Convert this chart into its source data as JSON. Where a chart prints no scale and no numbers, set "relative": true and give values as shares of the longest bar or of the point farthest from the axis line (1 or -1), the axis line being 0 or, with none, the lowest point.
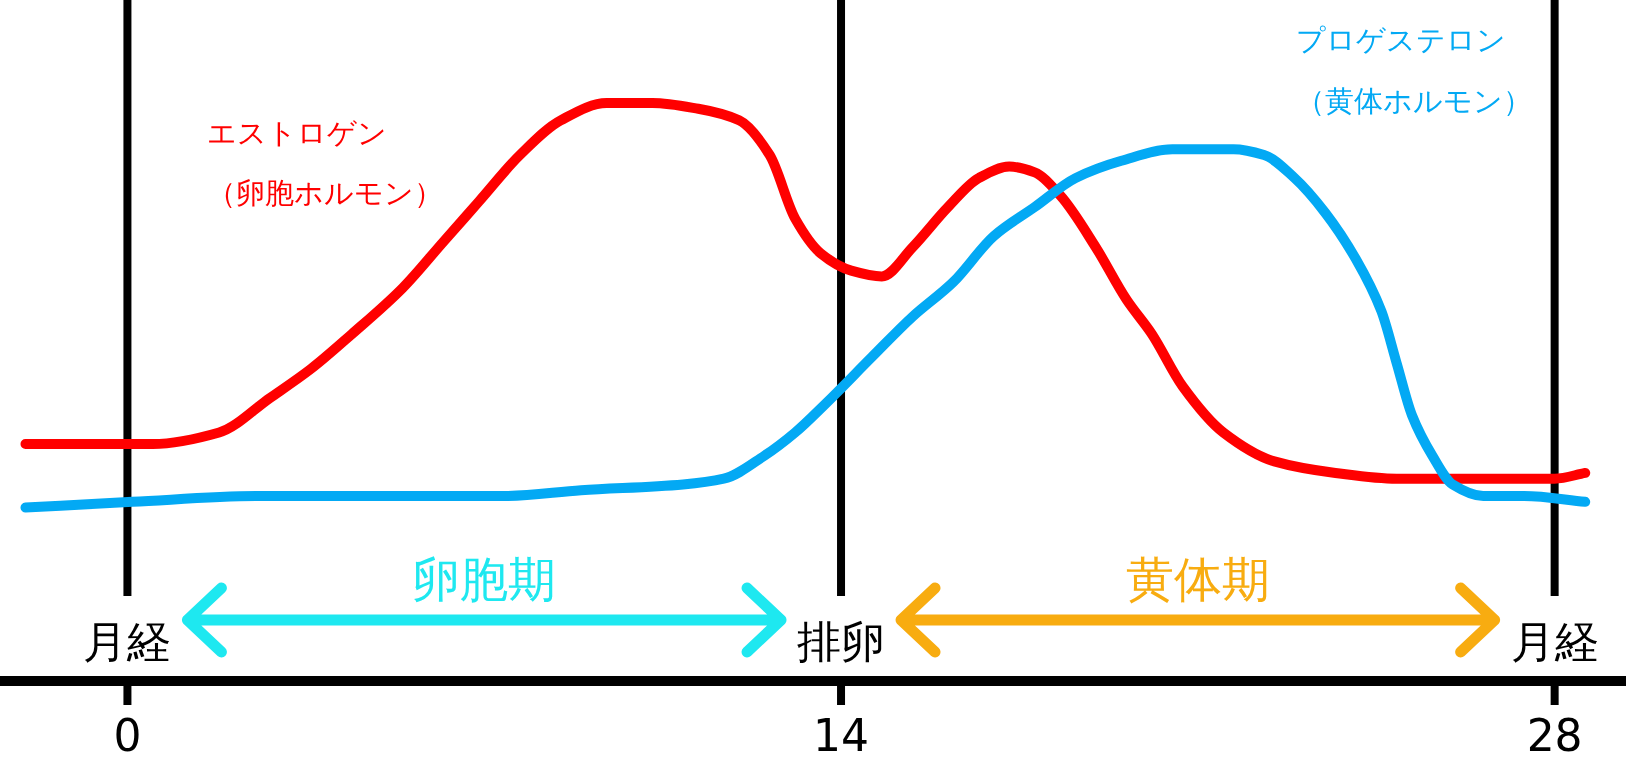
{
  "chart_data": {
    "type": "line",
    "relative": true,
    "line_style": "solid",
    "xlim": [
      -2.5,
      29.4
    ],
    "xticks": [
      0,
      14,
      28
    ],
    "series": [
      {
        "name": "エストロゲン（卵胞ホルモン）",
        "color": "#ff0000",
        "x": [
          -2.0,
          0.5,
          1.8,
          2.8,
          3.6,
          4.4,
          5.4,
          6.2,
          6.9,
          7.7,
          8.5,
          9.4,
          10.3,
          11.2,
          12.0,
          12.6,
          13.1,
          13.6,
          14.2,
          14.8,
          15.4,
          16.1,
          16.7,
          17.3,
          17.8,
          18.3,
          19.0,
          19.6,
          20.1,
          20.7,
          21.5,
          22.5,
          23.7,
          24.9,
          27.0,
          28.0,
          28.6
        ],
        "values": [
          0.41,
          0.41,
          0.43,
          0.49,
          0.54,
          0.6,
          0.68,
          0.76,
          0.83,
          0.91,
          0.97,
          1.0,
          1.0,
          0.99,
          0.97,
          0.91,
          0.8,
          0.74,
          0.71,
          0.7,
          0.75,
          0.82,
          0.87,
          0.89,
          0.88,
          0.84,
          0.75,
          0.66,
          0.6,
          0.51,
          0.43,
          0.38,
          0.36,
          0.35,
          0.35,
          0.35,
          0.36
        ]
      },
      {
        "name": "プロゲステロン（黄体ホルモン）",
        "color": "#03a9f4",
        "x": [
          -2.0,
          0.1,
          2.6,
          5.6,
          7.4,
          8.9,
          10.9,
          11.7,
          12.5,
          13.1,
          13.7,
          14.6,
          15.4,
          16.2,
          17.0,
          17.8,
          18.6,
          19.5,
          20.5,
          21.7,
          22.3,
          22.9,
          23.5,
          24.1,
          24.6,
          24.9,
          25.2,
          25.6,
          26.0,
          26.6,
          27.4,
          28.6
        ],
        "values": [
          0.3,
          0.31,
          0.32,
          0.32,
          0.32,
          0.33,
          0.34,
          0.35,
          0.39,
          0.43,
          0.48,
          0.56,
          0.63,
          0.69,
          0.77,
          0.82,
          0.87,
          0.9,
          0.92,
          0.92,
          0.91,
          0.87,
          0.81,
          0.73,
          0.64,
          0.55,
          0.46,
          0.39,
          0.34,
          0.32,
          0.32,
          0.31
        ]
      }
    ],
    "ref_lines": [
      {
        "axis": "x",
        "value": 0,
        "label": "月経",
        "color": "#000000"
      },
      {
        "axis": "x",
        "value": 14,
        "label": "排卵",
        "color": "#000000"
      },
      {
        "axis": "x",
        "value": 28,
        "label": "月経",
        "color": "#000000"
      }
    ],
    "annotations": [
      "卵胞期",
      "黄体期"
    ]
  }
}
